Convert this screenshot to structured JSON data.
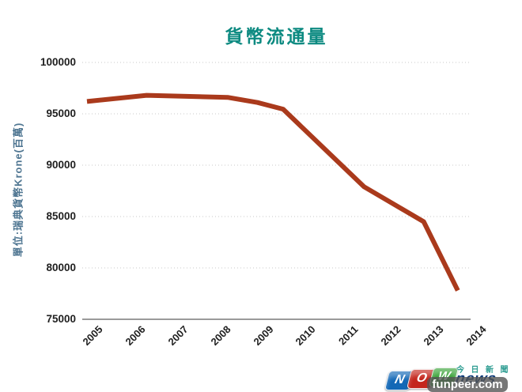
{
  "chart_data": {
    "type": "line",
    "title": "貨幣流通量",
    "ylabel": "單位:瑞典貨幣Krone(百萬)",
    "xlabel": "",
    "x_tick_labels": [
      "2005",
      "2006",
      "2007",
      "2008",
      "2009",
      "2010",
      "2011",
      "2012",
      "2013",
      "2014"
    ],
    "y_tick_values": [
      100000,
      95000,
      90000,
      85000,
      80000,
      75000
    ],
    "xlim": [
      2005,
      2014
    ],
    "ylim": [
      75000,
      100000
    ],
    "grid": "horizontal dotted gridlines, solid bottom axis",
    "legend_position": "none",
    "series": [
      {
        "name": "貨幣流通量",
        "points": [
          [
            2005.0,
            96200
          ],
          [
            2006.4,
            96800
          ],
          [
            2008.3,
            96600
          ],
          [
            2009.0,
            96100
          ],
          [
            2009.6,
            95450
          ],
          [
            2011.5,
            87900
          ],
          [
            2012.9,
            84500
          ],
          [
            2013.7,
            77800
          ]
        ]
      }
    ]
  },
  "colors": {
    "line": "#AA3A1C",
    "title": "#0D8A81",
    "ylabel": "#4E7591",
    "tick_label": "#1f1f1f",
    "gridline": "#c9c9c9",
    "axis_line": "#9a9a9a"
  },
  "watermark": {
    "logo": {
      "letters": [
        {
          "char": "N",
          "color": "#1368B6"
        },
        {
          "char": "O",
          "color": "#C4261D"
        },
        {
          "char": "W",
          "color": "#3BA339"
        }
      ],
      "suffix": "news",
      "suffix_color": "#123C78",
      "tagline": "今日新聞",
      "tagline_color": "#2E9D92"
    },
    "overlay_text": "funpeer.com",
    "overlay_bg": "rgba(85,85,85,0.8)"
  }
}
